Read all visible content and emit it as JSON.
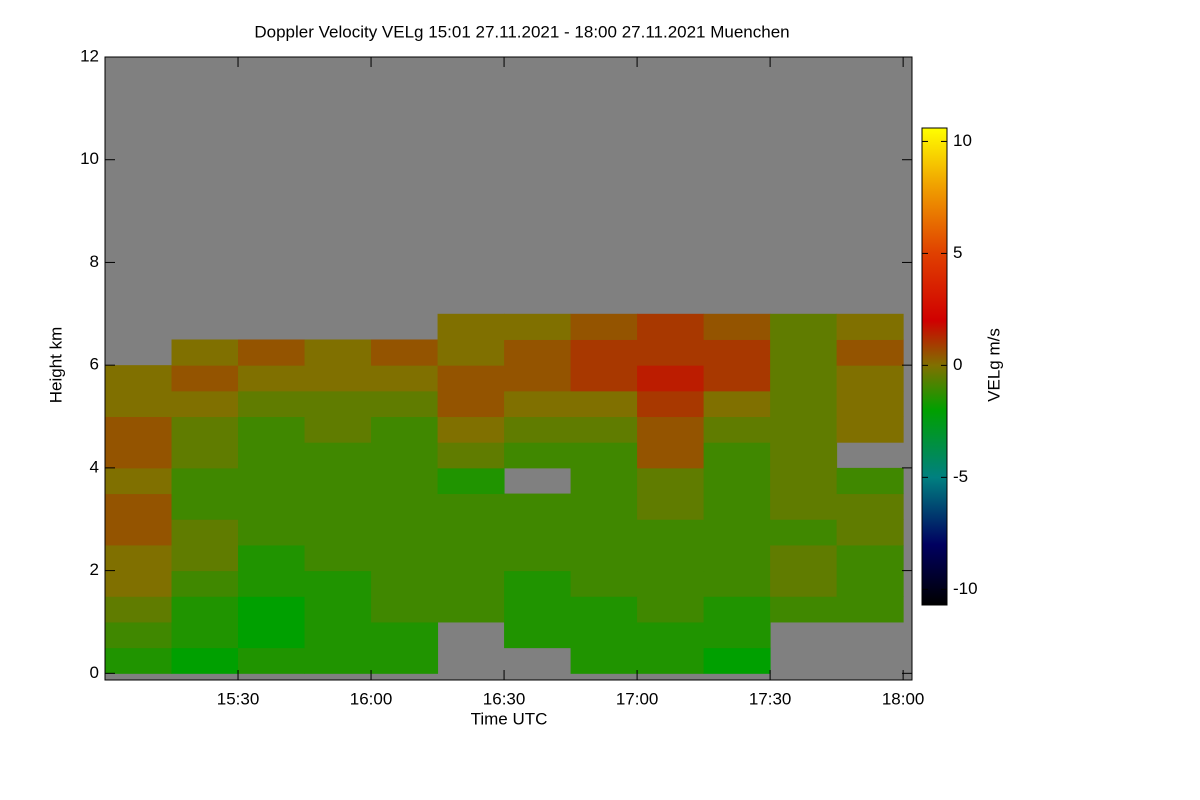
{
  "chart_data": {
    "type": "time-height",
    "title": "Doppler Velocity VELg   15:01 27.11.2021 - 18:00 27.11.2021 Muenchen",
    "xlabel": "Time UTC",
    "ylabel": "Height km",
    "colorbar_label": "VELg m/s",
    "xlim": [
      900,
      1082
    ],
    "xticks": [
      {
        "value": 930,
        "label": "15:30"
      },
      {
        "value": 960,
        "label": "16:00"
      },
      {
        "value": 990,
        "label": "16:30"
      },
      {
        "value": 1020,
        "label": "17:00"
      },
      {
        "value": 1050,
        "label": "17:30"
      },
      {
        "value": 1080,
        "label": "18:00"
      }
    ],
    "ylim": [
      -0.13,
      12
    ],
    "yticks": [
      0,
      2,
      4,
      6,
      8,
      10,
      12
    ],
    "zlim": [
      -10.7,
      10.6
    ],
    "zticks": [
      -10,
      -5,
      0,
      5,
      10
    ],
    "no_echo_color": "#808080",
    "colorscale": [
      [
        -10.7,
        "#000000"
      ],
      [
        -8,
        "#000060"
      ],
      [
        -5,
        "#008080"
      ],
      [
        -2,
        "#00a000"
      ],
      [
        0,
        "#807000"
      ],
      [
        2,
        "#d00000"
      ],
      [
        5,
        "#e04000"
      ],
      [
        8,
        "#f0a000"
      ],
      [
        10.6,
        "#ffff00"
      ]
    ],
    "x_bins": [
      900,
      915,
      930,
      945,
      960,
      975,
      990,
      1005,
      1020,
      1035,
      1050,
      1065,
      1080
    ],
    "y_bins": [
      0,
      0.5,
      1,
      1.5,
      2,
      2.5,
      3,
      3.5,
      4,
      4.5,
      5,
      5.5,
      6,
      6.5,
      7
    ],
    "values": [
      [
        -1.5,
        -2,
        -1.5,
        -1.5,
        -1.5,
        null,
        null,
        -1.5,
        -1.5,
        -2,
        null,
        null
      ],
      [
        -1,
        -1.5,
        -2,
        -1.5,
        -1.5,
        null,
        -1.5,
        -1.5,
        -1.5,
        -1.5,
        null,
        null
      ],
      [
        -0.5,
        -1.5,
        -2,
        -1.5,
        -1,
        -1,
        -1.5,
        -1.5,
        -1,
        -1.5,
        -1,
        -1
      ],
      [
        0,
        -1,
        -1.5,
        -1.5,
        -1,
        -1,
        -1.5,
        -1,
        -1,
        -1,
        -0.5,
        -1
      ],
      [
        0,
        -0.5,
        -1.5,
        -1,
        -1,
        -1,
        -1,
        -1,
        -1,
        -1,
        -0.5,
        -1
      ],
      [
        0.5,
        -0.5,
        -1,
        -1,
        -1,
        -1,
        -1,
        -1,
        -1,
        -1,
        -1,
        -0.5
      ],
      [
        0.5,
        -1,
        -1,
        -1,
        -1,
        -1,
        -1,
        -1,
        -0.5,
        -1,
        -0.5,
        -0.5
      ],
      [
        0,
        -1,
        -1,
        -1,
        -1,
        -1.5,
        null,
        -1,
        -0.5,
        -1,
        -0.5,
        -1
      ],
      [
        0.5,
        -0.5,
        -1,
        -1,
        -1,
        -0.5,
        -1,
        -1,
        0.5,
        -1,
        -0.5,
        null
      ],
      [
        0.5,
        -0.5,
        -1,
        -0.5,
        -1,
        0,
        -0.5,
        -0.5,
        0.5,
        -0.5,
        -0.5,
        0
      ],
      [
        0,
        0,
        -0.5,
        -0.5,
        -0.5,
        0.5,
        0,
        0,
        1,
        0,
        -0.5,
        0
      ],
      [
        0,
        0.5,
        0,
        0,
        0,
        0.5,
        0.5,
        1,
        1.5,
        1,
        -0.5,
        0
      ],
      [
        null,
        0,
        0.5,
        0,
        0.5,
        0,
        0.5,
        1,
        1,
        1,
        -0.5,
        0.5
      ],
      [
        null,
        null,
        null,
        null,
        null,
        0,
        0,
        0.5,
        1,
        0.5,
        -0.5,
        0
      ]
    ]
  }
}
